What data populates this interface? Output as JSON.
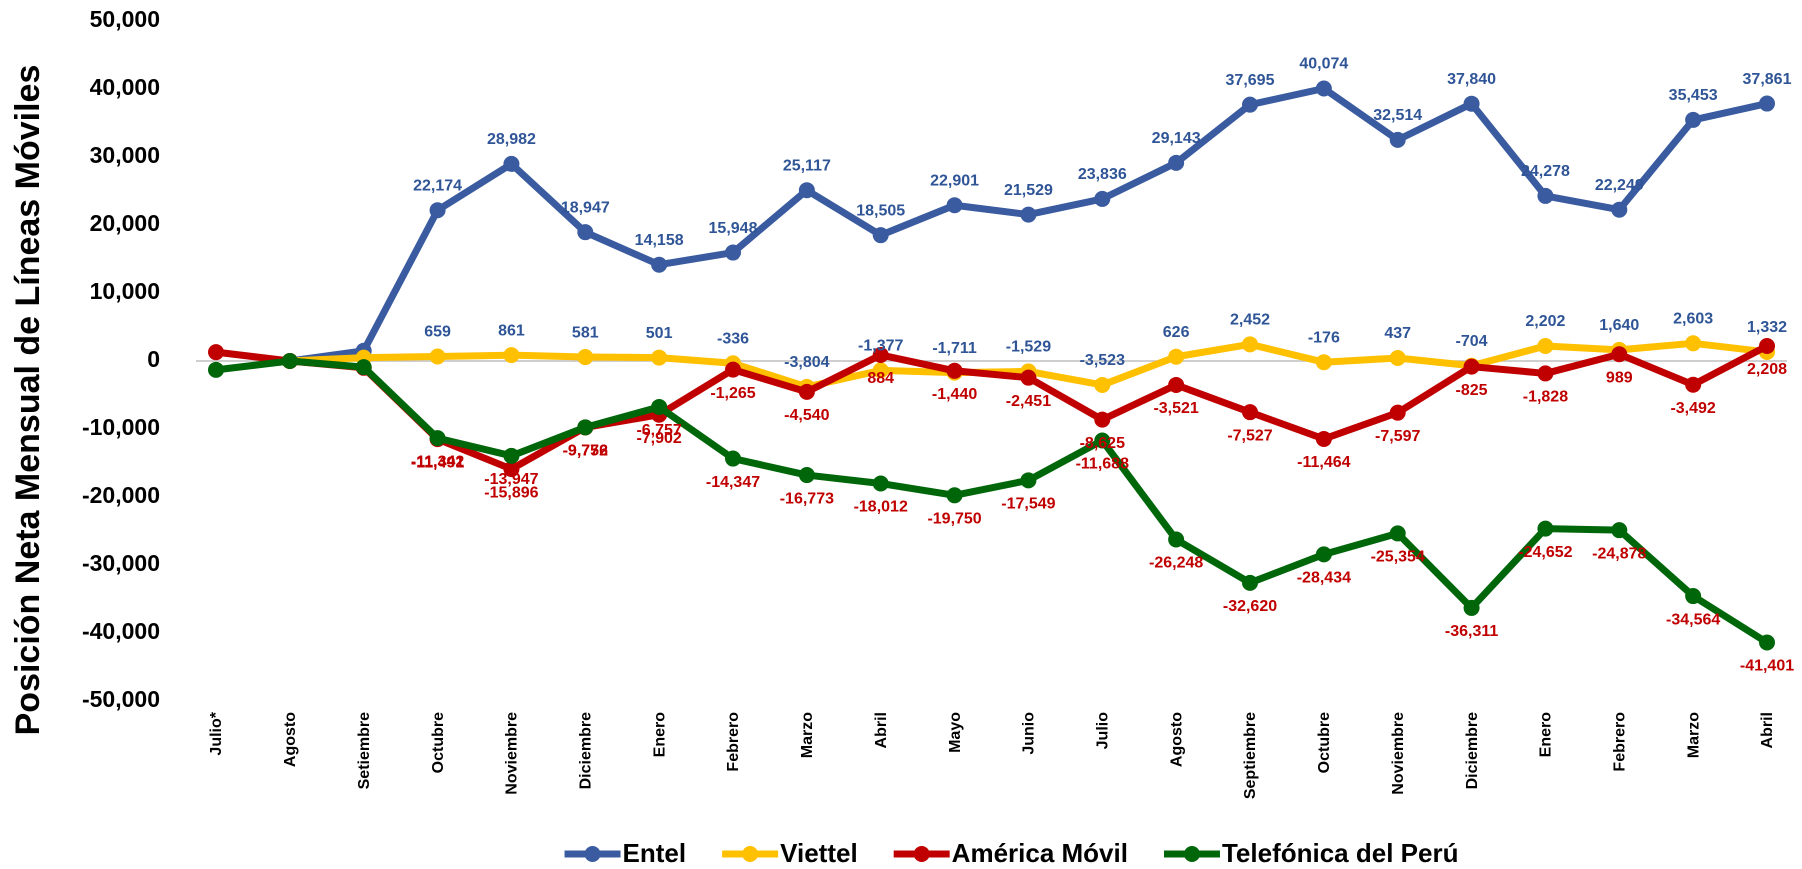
{
  "chart_data": {
    "type": "line",
    "y_label": "Posición Neta Mensual de Líneas Móviles",
    "categories": [
      "Julio*",
      "Agosto",
      "Setiembre",
      "Octubre",
      "Noviembre",
      "Diciembre",
      "Enero",
      "Febrero",
      "Marzo",
      "Abril",
      "Mayo",
      "Junio",
      "Julio",
      "Agosto",
      "Septiembre",
      "Octubre",
      "Noviembre",
      "Diciembre",
      "Enero",
      "Febrero",
      "Marzo",
      "Abril"
    ],
    "ylim": [
      -50000,
      50000
    ],
    "yticks": [
      {
        "value": -50000,
        "label": "-50,000"
      },
      {
        "value": -40000,
        "label": "-40,000"
      },
      {
        "value": -30000,
        "label": "-30,000"
      },
      {
        "value": -20000,
        "label": "-20,000"
      },
      {
        "value": -10000,
        "label": "-10,000"
      },
      0,
      {
        "value": 10000,
        "label": "10,000"
      },
      {
        "value": 20000,
        "label": "20,000"
      },
      {
        "value": 30000,
        "label": "30,000"
      },
      {
        "value": 40000,
        "label": "40,000"
      },
      {
        "value": 50000,
        "label": "50,000"
      }
    ],
    "legend": "bottom",
    "series": [
      {
        "name": "Entel",
        "color": "#3a5ba0",
        "label_color": "#2f5597",
        "values": [
          null,
          0,
          1500,
          22174,
          28982,
          18947,
          14158,
          15948,
          25117,
          18505,
          22901,
          21529,
          23836,
          29143,
          37695,
          40074,
          32514,
          37840,
          24278,
          22249,
          35453,
          37861
        ],
        "value_labels": [
          null,
          null,
          null,
          "22,174",
          "28,982",
          "18,947",
          "14,158",
          "15,948",
          "25,117",
          "18,505",
          "22,901",
          "21,529",
          "23,836",
          "29,143",
          "37,695",
          "40,074",
          "32,514",
          "37,840",
          "24,278",
          "22,249",
          "35,453",
          "37,861"
        ]
      },
      {
        "name": "Viettel",
        "color": "#ffc000",
        "label_color": "#2f5597",
        "values": [
          null,
          0,
          500,
          659,
          861,
          581,
          501,
          -336,
          -3804,
          -1377,
          -1711,
          -1529,
          -3523,
          626,
          2452,
          -176,
          437,
          -704,
          2202,
          1640,
          2603,
          1332
        ],
        "value_labels": [
          null,
          null,
          null,
          "659",
          "861",
          "581",
          "501",
          "-336",
          "-3,804",
          "-1,377",
          "-1,711",
          "-1,529",
          "-3,523",
          "626",
          "2,452",
          "-176",
          "437",
          "-704",
          "2,202",
          "1,640",
          "2,603",
          "1,332"
        ]
      },
      {
        "name": "América Móvil",
        "color": "#c00000",
        "label_color": "#c00000",
        "values": [
          1300,
          0,
          -1000,
          -11491,
          -15896,
          -9776,
          -7902,
          -1265,
          -4540,
          884,
          -1440,
          -2451,
          -8625,
          -3521,
          -7527,
          -11464,
          -7597,
          -825,
          -1828,
          989,
          -3492,
          2208
        ],
        "value_labels": [
          null,
          null,
          null,
          "-11,491",
          "-15,896",
          "-9,776",
          "-7,902",
          "-1,265",
          "-4,540",
          "884",
          "-1,440",
          "-2,451",
          "-8,625",
          "-3,521",
          "-7,527",
          "-11,464",
          "-7,597",
          "-825",
          "-1,828",
          "989",
          "-3,492",
          "2,208"
        ]
      },
      {
        "name": "Telefónica del Perú",
        "color": "#00660a",
        "label_color": "#c00000",
        "values": [
          -1300,
          0,
          -900,
          -11342,
          -13947,
          -9752,
          -6757,
          -14347,
          -16773,
          -18012,
          -19750,
          -17549,
          -11688,
          -26248,
          -32620,
          -28434,
          -25354,
          -36311,
          -24652,
          -24878,
          -34564,
          -41401
        ],
        "value_labels": [
          null,
          null,
          null,
          "-11,342",
          "-13,947",
          "-9,752",
          "-6,757",
          "-14,347",
          "-16,773",
          "-18,012",
          "-19,750",
          "-17,549",
          "-11,688",
          "-26,248",
          "-32,620",
          "-28,434",
          "-25,354",
          "-36,311",
          "-24,652",
          "-24,878",
          "-34,564",
          "-41,401"
        ]
      }
    ]
  }
}
